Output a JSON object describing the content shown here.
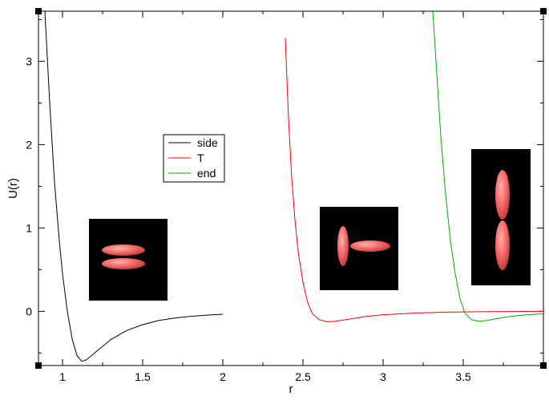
{
  "chart_data": {
    "type": "line",
    "title": "",
    "xlabel": "r",
    "ylabel": "U(r)",
    "xlim": [
      0.85,
      4.0
    ],
    "ylim": [
      -0.65,
      3.6
    ],
    "x_ticks": [
      1,
      1.5,
      2,
      2.5,
      3,
      3.5
    ],
    "x_tick_labels": [
      "1",
      "1.5",
      "2",
      "2.5",
      "3",
      "3.5"
    ],
    "y_ticks": [
      0,
      1,
      2,
      3
    ],
    "y_tick_labels": [
      "0",
      "1",
      "2",
      "3"
    ],
    "grid": false,
    "legend_position": "center-left",
    "series": [
      {
        "name": "side",
        "color": "#000000",
        "x": [
          0.89,
          0.92,
          0.95,
          0.98,
          1.0,
          1.03,
          1.06,
          1.09,
          1.12,
          1.15,
          1.2,
          1.25,
          1.3,
          1.4,
          1.5,
          1.6,
          1.7,
          1.8,
          1.9,
          2.0
        ],
        "y": [
          3.6,
          2.5,
          1.55,
          0.85,
          0.45,
          0.0,
          -0.33,
          -0.53,
          -0.6,
          -0.58,
          -0.5,
          -0.42,
          -0.34,
          -0.23,
          -0.16,
          -0.11,
          -0.08,
          -0.06,
          -0.045,
          -0.035
        ]
      },
      {
        "name": "T",
        "color": "#ff0000",
        "x": [
          2.39,
          2.41,
          2.43,
          2.45,
          2.47,
          2.5,
          2.53,
          2.56,
          2.6,
          2.65,
          2.7,
          2.8,
          2.9,
          3.0,
          3.2,
          3.4,
          3.6,
          3.8,
          4.0
        ],
        "y": [
          3.28,
          2.3,
          1.6,
          1.1,
          0.72,
          0.35,
          0.1,
          -0.03,
          -0.1,
          -0.125,
          -0.12,
          -0.09,
          -0.06,
          -0.04,
          -0.02,
          -0.01,
          -0.005,
          -0.002,
          0.0
        ]
      },
      {
        "name": "end",
        "color": "#00aa00",
        "x": [
          3.31,
          3.33,
          3.36,
          3.39,
          3.42,
          3.45,
          3.48,
          3.51,
          3.55,
          3.6,
          3.65,
          3.7,
          3.8,
          3.9,
          4.0
        ],
        "y": [
          3.6,
          3.0,
          2.1,
          1.4,
          0.85,
          0.45,
          0.15,
          -0.02,
          -0.1,
          -0.12,
          -0.11,
          -0.09,
          -0.06,
          -0.04,
          -0.03
        ]
      }
    ],
    "inset_colors": {
      "background": "#000000",
      "ellipsoid": "#f06060"
    }
  }
}
